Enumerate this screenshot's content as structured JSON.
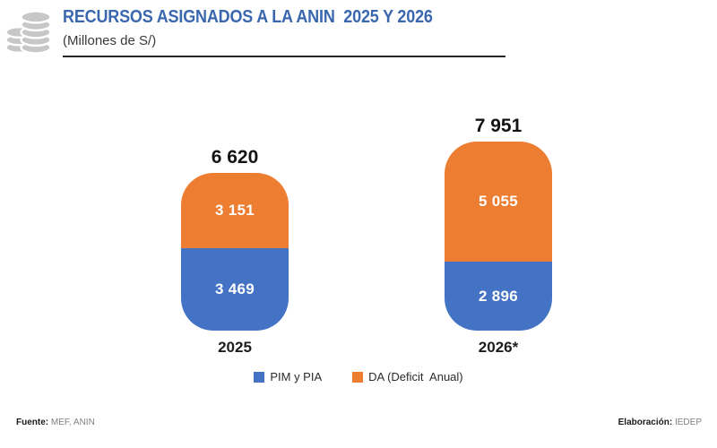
{
  "header": {
    "title": "RECURSOS ASIGNADOS A LA ANIN  2025 Y 2026",
    "subtitle": "(Millones de S/)",
    "icon": "coins-stack-icon"
  },
  "colors": {
    "title_blue": "#3a67ae",
    "bar_blue": "#4472c4",
    "bar_orange": "#ed7d31",
    "icon_gray": "#c7c7c7",
    "footer_gray": "#808080"
  },
  "chart_data": {
    "type": "bar",
    "subtype": "stacked",
    "title": "RECURSOS ASIGNADOS A LA ANIN  2025 Y 2026",
    "units": "Millones de S/",
    "categories": [
      "2025",
      "2026*"
    ],
    "series": [
      {
        "name": "PIM y PIA",
        "color": "#4472c4",
        "values": [
          3469,
          2896
        ],
        "labels": [
          "3 469",
          "2 896"
        ]
      },
      {
        "name": "DA (Deficit  Anual)",
        "color": "#ed7d31",
        "values": [
          3151,
          5055
        ],
        "labels": [
          "3 151",
          "5 055"
        ]
      }
    ],
    "totals": [
      6620,
      7951
    ],
    "total_labels": [
      "6 620",
      "7 951"
    ],
    "legend_position": "bottom",
    "grid": false,
    "axis_visible": false
  },
  "footer": {
    "source_label": "Fuente:",
    "source_value": "MEF, ANIN",
    "elaboration_label": "Elaboración:",
    "elaboration_value": "IEDEP"
  }
}
